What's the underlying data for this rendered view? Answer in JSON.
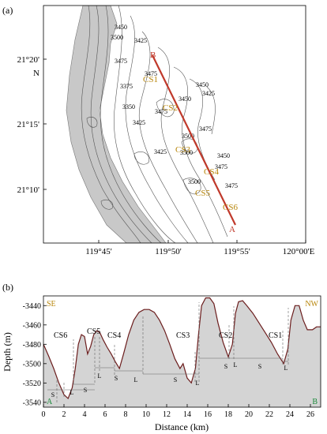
{
  "panel_a": {
    "label": "(a)",
    "lat_labels": [
      "21°20'",
      "21°15'",
      "21°10'"
    ],
    "lat_hemisphere": "N",
    "lon_labels": [
      "119°45'",
      "119°50'",
      "119°55'",
      "120°00'E"
    ],
    "contour_labels": [
      "3450",
      "3425",
      "3500",
      "3475",
      "3475",
      "3450",
      "3425",
      "3375",
      "3475",
      "3350",
      "3450",
      "3500",
      "3475",
      "3425",
      "3450",
      "3475",
      "3500",
      "3475",
      "3425",
      "3500"
    ],
    "profile_ends": [
      "B",
      "A"
    ],
    "cs_labels": [
      "CS1",
      "CS2",
      "CS3",
      "CS4",
      "CS5",
      "CS6"
    ],
    "colors": {
      "profile_line": "#c0392b",
      "cs_text": "#b8860b",
      "contour": "#555555",
      "land": "#9a9a9a"
    }
  },
  "panel_b": {
    "label": "(b)",
    "dir_left": "SE",
    "dir_right": "NW",
    "end_left": "A",
    "end_right": "B",
    "cs_labels": [
      "CS6",
      "CS5",
      "CS4",
      "CS3",
      "CS2",
      "CS1"
    ],
    "sl_labels": [
      "S",
      "L",
      "S",
      "L",
      "S",
      "L",
      "S",
      "L",
      "S",
      "L",
      "S",
      "L"
    ],
    "colors": {
      "fill": "#d4d4d4",
      "profile": "#6b1d1d",
      "dir_text": "#b8860b",
      "end_text": "#1a8a3a"
    }
  },
  "chart_data": {
    "type": "area",
    "xlabel": "Distance (km)",
    "ylabel": "Depth (m)",
    "xlim": [
      0,
      27
    ],
    "ylim": [
      -3545,
      -3430
    ],
    "x_ticks": [
      0,
      2,
      4,
      6,
      8,
      10,
      12,
      14,
      16,
      18,
      20,
      22,
      24,
      26
    ],
    "y_ticks": [
      -3440,
      -3460,
      -3480,
      -3500,
      -3520,
      -3540
    ],
    "x": [
      0,
      0.5,
      1,
      1.5,
      2,
      2.4,
      2.8,
      3.1,
      3.4,
      3.7,
      4.0,
      4.3,
      4.6,
      4.9,
      5.2,
      5.5,
      5.8,
      6.2,
      6.6,
      7.0,
      7.4,
      7.8,
      8.3,
      8.8,
      9.3,
      9.8,
      10.3,
      10.8,
      11.3,
      11.8,
      12.3,
      12.8,
      13.3,
      13.6,
      14.0,
      14.4,
      14.8,
      15.1,
      15.4,
      15.8,
      16.2,
      16.6,
      17.0,
      17.5,
      18.0,
      18.4,
      18.7,
      19.0,
      19.4,
      19.8,
      20.4,
      21.0,
      21.6,
      22.2,
      22.8,
      23.4,
      23.8,
      24.1,
      24.5,
      24.9,
      25.3,
      25.7,
      26.2,
      26.6,
      27.0
    ],
    "values": [
      -3480,
      -3492,
      -3505,
      -3520,
      -3532,
      -3536,
      -3525,
      -3505,
      -3480,
      -3470,
      -3472,
      -3490,
      -3482,
      -3470,
      -3466,
      -3468,
      -3475,
      -3483,
      -3490,
      -3498,
      -3505,
      -3490,
      -3470,
      -3455,
      -3447,
      -3444,
      -3444,
      -3447,
      -3455,
      -3466,
      -3480,
      -3495,
      -3505,
      -3500,
      -3515,
      -3520,
      -3505,
      -3470,
      -3440,
      -3432,
      -3432,
      -3438,
      -3458,
      -3478,
      -3493,
      -3480,
      -3448,
      -3436,
      -3435,
      -3440,
      -3448,
      -3458,
      -3468,
      -3478,
      -3490,
      -3500,
      -3485,
      -3455,
      -3440,
      -3440,
      -3455,
      -3465,
      -3465,
      -3462,
      -3462
    ]
  }
}
